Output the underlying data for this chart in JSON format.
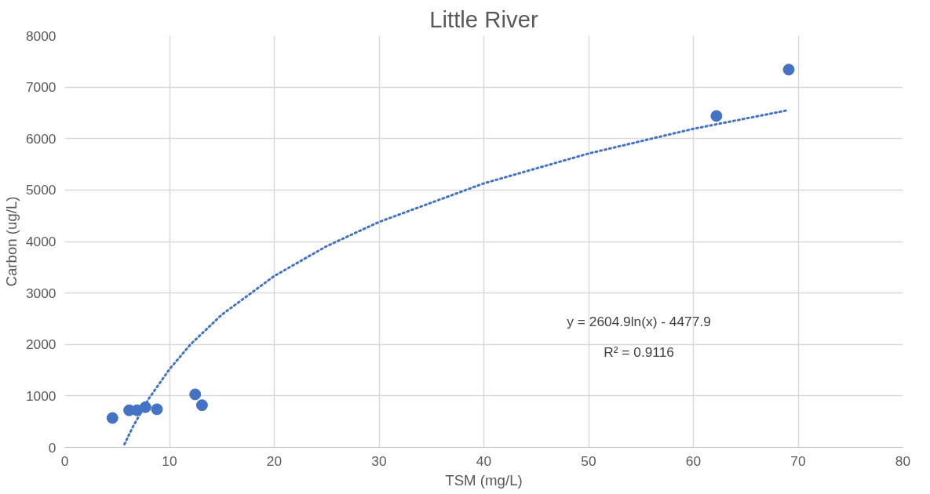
{
  "chart_data": {
    "type": "scatter",
    "title": "Little River",
    "xlabel": "TSM (mg/L)",
    "ylabel": "Carbon (ug/L)",
    "xlim": [
      0,
      80
    ],
    "xticks": [
      0,
      10,
      20,
      30,
      40,
      50,
      60,
      70,
      80
    ],
    "ylim": [
      0,
      8000
    ],
    "yticks": [
      0,
      1000,
      2000,
      3000,
      4000,
      5000,
      6000,
      7000,
      8000
    ],
    "grid": true,
    "series": [
      {
        "color": "#4472c4",
        "marker": "circle",
        "x": [
          4.55,
          6.15,
          6.9,
          7.7,
          8.8,
          12.45,
          13.1,
          62.2,
          69.1
        ],
        "values": [
          570,
          720,
          720,
          780,
          740,
          1030,
          820,
          6440,
          7340
        ]
      },
      {
        "type": "line",
        "color": "#4472c4",
        "line_style": "dotted",
        "x": [
          5.7,
          6.5,
          8,
          10,
          12,
          15,
          20,
          25,
          30,
          40,
          50,
          60,
          69
        ],
        "values": [
          60,
          400,
          940,
          1520,
          2000,
          2580,
          3330,
          3910,
          4380,
          5130,
          5710,
          6190,
          6550
        ]
      }
    ],
    "annotations": [
      "y = 2604.9ln(x) - 4477.9",
      "R² = 0.9116"
    ]
  }
}
